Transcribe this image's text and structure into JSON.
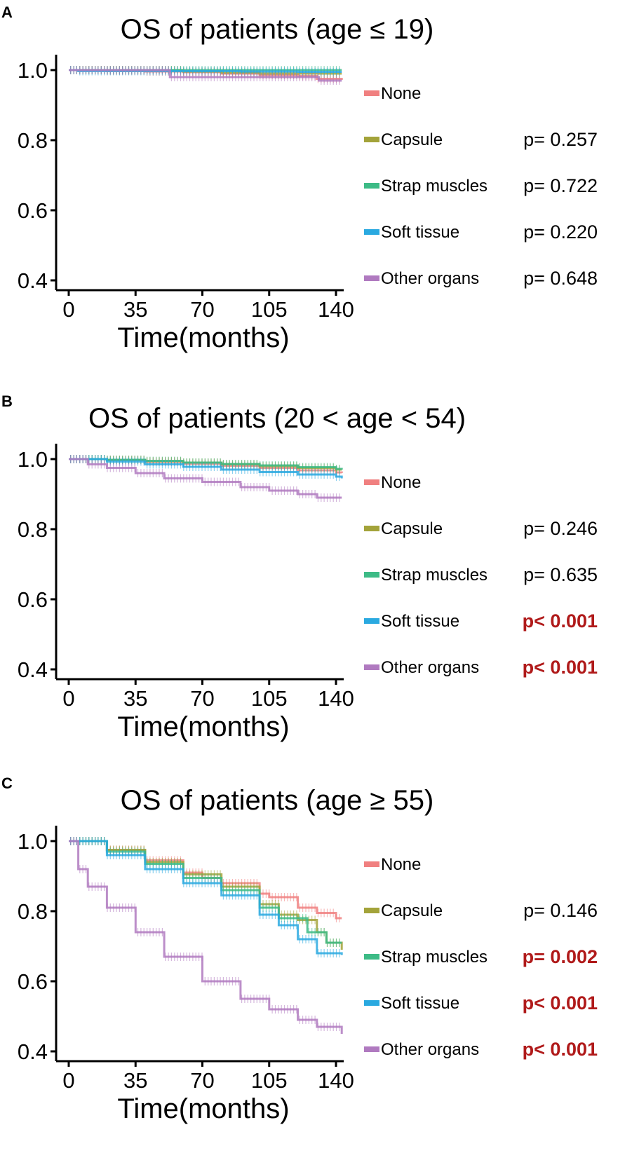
{
  "colors": {
    "None": "#f08080",
    "Capsule": "#a3a33a",
    "Strap muscles": "#3dbb86",
    "Soft tissue": "#2aa9e0",
    "Other organs": "#b07ac0",
    "significant": "#b01a1a"
  },
  "chart_data": [
    {
      "panel": "A",
      "type": "line",
      "title": "OS of patients (age ≤ 19)",
      "xlabel": "Time(months)",
      "ylabel": "",
      "xlim": [
        0,
        140
      ],
      "ylim": [
        0.4,
        1.0
      ],
      "xticks": [
        "0",
        "35",
        "70",
        "105",
        "140"
      ],
      "yticks": [
        "0.4",
        "0.6",
        "0.8",
        "1.0"
      ],
      "legend": [
        {
          "name": "None",
          "p": ""
        },
        {
          "name": "Capsule",
          "p": "p= 0.257"
        },
        {
          "name": "Strap muscles",
          "p": "p= 0.722"
        },
        {
          "name": "Soft tissue",
          "p": "p= 0.220"
        },
        {
          "name": "Other organs",
          "p": "p= 0.648"
        }
      ],
      "significant": [
        false,
        false,
        false,
        false,
        false
      ],
      "series": [
        {
          "name": "None",
          "x": [
            0,
            20,
            40,
            60,
            80,
            100,
            120,
            130,
            143
          ],
          "y": [
            1.0,
            0.998,
            0.996,
            0.994,
            0.99,
            0.986,
            0.983,
            0.975,
            0.972
          ]
        },
        {
          "name": "Capsule",
          "x": [
            0,
            20,
            40,
            60,
            80,
            100,
            120,
            143
          ],
          "y": [
            1.0,
            1.0,
            1.0,
            0.996,
            0.993,
            0.99,
            0.99,
            0.99
          ]
        },
        {
          "name": "Strap muscles",
          "x": [
            0,
            143
          ],
          "y": [
            1.0,
            1.0
          ]
        },
        {
          "name": "Soft tissue",
          "x": [
            0,
            5,
            30,
            60,
            90,
            120,
            143
          ],
          "y": [
            1.0,
            0.997,
            0.997,
            0.997,
            0.996,
            0.995,
            0.995
          ]
        },
        {
          "name": "Other organs",
          "x": [
            0,
            52,
            53,
            100,
            130,
            131,
            143
          ],
          "y": [
            1.0,
            1.0,
            0.98,
            0.98,
            0.98,
            0.97,
            0.97
          ]
        }
      ]
    },
    {
      "panel": "B",
      "type": "line",
      "title": "OS of patients (20 < age < 54)",
      "xlabel": "Time(months)",
      "ylabel": "",
      "xlim": [
        0,
        140
      ],
      "ylim": [
        0.4,
        1.0
      ],
      "xticks": [
        "0",
        "35",
        "70",
        "105",
        "140"
      ],
      "yticks": [
        "0.4",
        "0.6",
        "0.8",
        "1.0"
      ],
      "legend": [
        {
          "name": "None",
          "p": ""
        },
        {
          "name": "Capsule",
          "p": "p= 0.246"
        },
        {
          "name": "Strap muscles",
          "p": "p= 0.635"
        },
        {
          "name": "Soft tissue",
          "p": "p< 0.001"
        },
        {
          "name": "Other organs",
          "p": "p< 0.001"
        }
      ],
      "significant": [
        false,
        false,
        false,
        true,
        true
      ],
      "series": [
        {
          "name": "None",
          "x": [
            0,
            20,
            40,
            60,
            80,
            100,
            120,
            140,
            143
          ],
          "y": [
            1.0,
            0.997,
            0.992,
            0.987,
            0.981,
            0.975,
            0.968,
            0.962,
            0.96
          ]
        },
        {
          "name": "Capsule",
          "x": [
            0,
            20,
            40,
            60,
            80,
            100,
            120,
            140,
            143
          ],
          "y": [
            1.0,
            0.998,
            0.994,
            0.99,
            0.985,
            0.98,
            0.975,
            0.97,
            0.97
          ]
        },
        {
          "name": "Strap muscles",
          "x": [
            0,
            20,
            40,
            60,
            80,
            100,
            120,
            140,
            143
          ],
          "y": [
            1.0,
            0.998,
            0.995,
            0.99,
            0.986,
            0.982,
            0.977,
            0.972,
            0.97
          ]
        },
        {
          "name": "Soft tissue",
          "x": [
            0,
            20,
            40,
            60,
            80,
            100,
            120,
            140,
            143
          ],
          "y": [
            1.0,
            0.993,
            0.985,
            0.978,
            0.97,
            0.963,
            0.956,
            0.95,
            0.945
          ]
        },
        {
          "name": "Other organs",
          "x": [
            0,
            10,
            20,
            35,
            50,
            70,
            90,
            105,
            120,
            130,
            143
          ],
          "y": [
            1.0,
            0.985,
            0.975,
            0.96,
            0.945,
            0.935,
            0.92,
            0.91,
            0.9,
            0.89,
            0.89
          ]
        }
      ]
    },
    {
      "panel": "C",
      "type": "line",
      "title": "OS of patients (age ≥ 55)",
      "xlabel": "Time(months)",
      "ylabel": "",
      "xlim": [
        0,
        140
      ],
      "ylim": [
        0.4,
        1.0
      ],
      "xticks": [
        "0",
        "35",
        "70",
        "105",
        "140"
      ],
      "yticks": [
        "0.4",
        "0.6",
        "0.8",
        "1.0"
      ],
      "legend": [
        {
          "name": "None",
          "p": ""
        },
        {
          "name": "Capsule",
          "p": "p= 0.146"
        },
        {
          "name": "Strap muscles",
          "p": "p= 0.002"
        },
        {
          "name": "Soft tissue",
          "p": "p< 0.001"
        },
        {
          "name": "Other organs",
          "p": "p< 0.001"
        }
      ],
      "significant": [
        false,
        false,
        true,
        true,
        true
      ],
      "series": [
        {
          "name": "None",
          "x": [
            0,
            20,
            40,
            60,
            70,
            80,
            100,
            105,
            120,
            130,
            140,
            143
          ],
          "y": [
            1.0,
            0.975,
            0.945,
            0.91,
            0.895,
            0.88,
            0.85,
            0.84,
            0.81,
            0.795,
            0.78,
            0.78
          ]
        },
        {
          "name": "Capsule",
          "x": [
            0,
            20,
            40,
            60,
            80,
            100,
            110,
            120,
            130,
            135,
            143
          ],
          "y": [
            1.0,
            0.975,
            0.94,
            0.905,
            0.87,
            0.82,
            0.79,
            0.775,
            0.74,
            0.71,
            0.69
          ]
        },
        {
          "name": "Strap muscles",
          "x": [
            0,
            20,
            40,
            60,
            80,
            100,
            110,
            120,
            125,
            135,
            143
          ],
          "y": [
            1.0,
            0.97,
            0.935,
            0.895,
            0.86,
            0.81,
            0.78,
            0.78,
            0.74,
            0.71,
            0.71
          ]
        },
        {
          "name": "Soft tissue",
          "x": [
            0,
            20,
            40,
            60,
            80,
            100,
            110,
            115,
            120,
            130,
            143
          ],
          "y": [
            1.0,
            0.96,
            0.92,
            0.88,
            0.845,
            0.79,
            0.76,
            0.76,
            0.72,
            0.68,
            0.675
          ]
        },
        {
          "name": "Other organs",
          "x": [
            0,
            5,
            10,
            20,
            35,
            50,
            70,
            90,
            105,
            120,
            130,
            143
          ],
          "y": [
            1.0,
            0.92,
            0.87,
            0.81,
            0.74,
            0.67,
            0.6,
            0.55,
            0.52,
            0.49,
            0.47,
            0.45
          ]
        }
      ]
    }
  ]
}
